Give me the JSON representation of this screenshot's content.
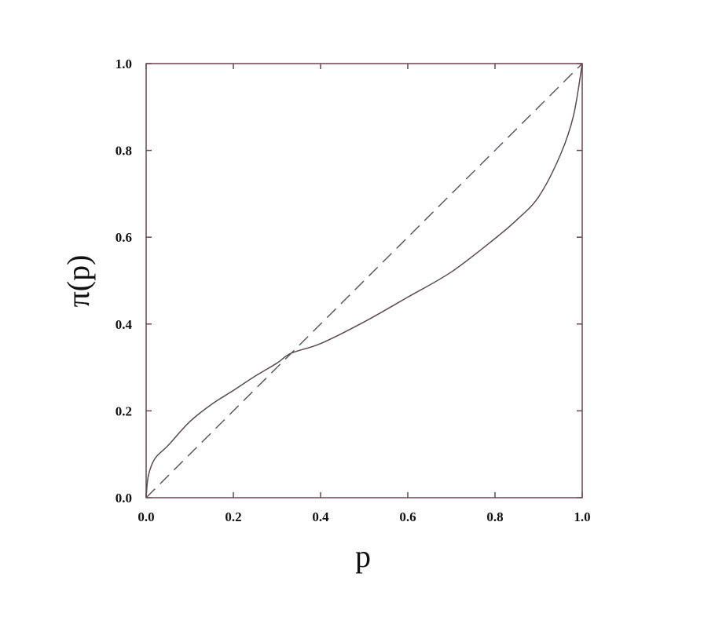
{
  "chart_data": {
    "type": "line",
    "title": "",
    "xlabel": "p",
    "ylabel": "π(p)",
    "xlim": [
      0,
      1
    ],
    "ylim": [
      0,
      1
    ],
    "grid": false,
    "xticks": [
      "0.0",
      "0.2",
      "0.4",
      "0.6",
      "0.8",
      "1.0"
    ],
    "yticks": [
      "0.0",
      "0.2",
      "0.4",
      "0.6",
      "0.8",
      "1.0"
    ],
    "series": [
      {
        "style": "solid",
        "x": [
          0,
          0.005,
          0.02,
          0.05,
          0.1,
          0.15,
          0.2,
          0.25,
          0.3,
          0.333,
          0.4,
          0.5,
          0.6,
          0.7,
          0.8,
          0.85,
          0.9,
          0.95,
          0.98,
          1.0
        ],
        "y": [
          0,
          0.05,
          0.09,
          0.12,
          0.175,
          0.215,
          0.247,
          0.28,
          0.31,
          0.333,
          0.355,
          0.405,
          0.462,
          0.52,
          0.597,
          0.64,
          0.693,
          0.79,
          0.88,
          1.0
        ]
      },
      {
        "style": "dashed",
        "x": [
          0,
          1
        ],
        "y": [
          0,
          1
        ]
      }
    ],
    "colors": {
      "axes": "#6a4450",
      "curve": "#5a4a50",
      "diagonal": "#5a5a60"
    }
  }
}
